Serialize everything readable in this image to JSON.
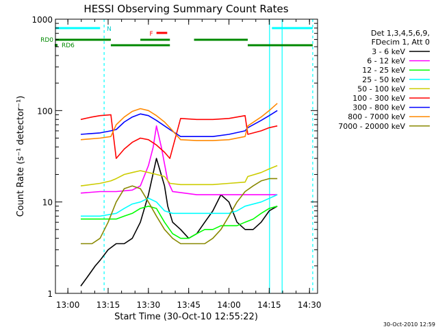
{
  "chart_data": {
    "type": "line",
    "title": "HESSI Observing Summary Count Rates",
    "xlabel": "Start Time (30-Oct-10 12:55:22)",
    "ylabel": "Count Rate (s⁻¹ detector⁻¹)",
    "yscale": "log",
    "ylim": [
      1,
      1000
    ],
    "xlim": [
      12.9228,
      14.55
    ],
    "x_units": "decimal hours UT",
    "x_ticks": [
      "13:00",
      "13:15",
      "13:30",
      "13:45",
      "14:00",
      "14:15",
      "14:30"
    ],
    "y_ticks": [
      "1",
      "10",
      "100",
      "1000"
    ],
    "timestamp": "30-Oct-2010 12:59",
    "legend": {
      "position": "right",
      "header": [
        "Det 1,3,4,5,6,9,",
        "FDecim 1, Att 0"
      ],
      "entries": [
        {
          "label": "3 - 6 keV",
          "color": "#000000"
        },
        {
          "label": "6 - 12 keV",
          "color": "#ff00ff"
        },
        {
          "label": "12 - 25 keV",
          "color": "#00ff00"
        },
        {
          "label": "25 - 50 keV",
          "color": "#00ffff"
        },
        {
          "label": "50 - 100 keV",
          "color": "#cccc00"
        },
        {
          "label": "100 - 300 keV",
          "color": "#ff0000"
        },
        {
          "label": "300 - 800 keV",
          "color": "#0000ff"
        },
        {
          "label": "800 - 7000 keV",
          "color": "#ff8800"
        },
        {
          "label": "7000 - 20000 keV",
          "color": "#888800"
        }
      ]
    },
    "flags": [
      {
        "label": "N",
        "color": "#00ffff",
        "segments": [
          [
            12.9228,
            13.2
          ],
          [
            14.2667,
            14.52
          ]
        ]
      },
      {
        "label": "F",
        "color": "#ff0000",
        "segments": [
          [
            13.55,
            13.6167
          ]
        ]
      },
      {
        "label": "RD0",
        "color": "#008800",
        "segments": [
          [
            12.9228,
            13.2667
          ],
          [
            13.45,
            13.6333
          ],
          [
            13.7833,
            14.1167
          ]
        ]
      },
      {
        "label": "RD6",
        "color": "#008800",
        "segments": [
          [
            13.2667,
            13.6333
          ],
          [
            14.1167,
            14.52
          ]
        ]
      }
    ],
    "markers": [
      {
        "x": 13.225,
        "color": "#00ffff",
        "style": "dashed"
      },
      {
        "x": 14.252,
        "color": "#00ffff",
        "style": "solid"
      },
      {
        "x": 14.33,
        "color": "#00ffff",
        "style": "solid"
      },
      {
        "x": 14.52,
        "color": "#00ffff",
        "style": "dashed"
      }
    ],
    "series": [
      {
        "name": "3 - 6 keV",
        "color": "#000000",
        "x": [
          13.08,
          13.12,
          13.17,
          13.2,
          13.25,
          13.3,
          13.35,
          13.4,
          13.45,
          13.5,
          13.55,
          13.6,
          13.62,
          13.65,
          13.7,
          13.75,
          13.8,
          13.85,
          13.9,
          13.95,
          14.0,
          14.05,
          14.1,
          14.15,
          14.2,
          14.25,
          14.3
        ],
        "y": [
          1.2,
          1.5,
          2.0,
          2.3,
          3.0,
          3.5,
          3.5,
          4.0,
          6,
          12,
          30,
          15,
          9,
          6,
          5,
          4,
          4.5,
          6,
          8,
          12,
          10,
          6,
          5,
          5,
          6,
          8,
          9
        ]
      },
      {
        "name": "6 - 12 keV",
        "color": "#ff00ff",
        "x": [
          13.08,
          13.2,
          13.3,
          13.4,
          13.45,
          13.5,
          13.53,
          13.55,
          13.58,
          13.62,
          13.65,
          13.8,
          13.95,
          14.05,
          14.1,
          14.2,
          14.3
        ],
        "y": [
          12.5,
          13,
          13,
          13.5,
          15,
          25,
          40,
          68,
          40,
          17,
          13,
          12,
          12,
          12,
          12,
          12,
          12
        ]
      },
      {
        "name": "12 - 25 keV",
        "color": "#00ff00",
        "x": [
          13.08,
          13.12,
          13.17,
          13.2,
          13.25,
          13.3,
          13.35,
          13.4,
          13.45,
          13.5,
          13.55,
          13.6,
          13.65,
          13.7,
          13.75,
          13.8,
          13.85,
          13.9,
          13.95,
          14.0,
          14.05,
          14.1,
          14.15,
          14.2,
          14.25,
          14.3
        ],
        "y": [
          6.5,
          6.5,
          6.5,
          6.5,
          6.5,
          6.5,
          7.0,
          7.5,
          8.5,
          9.0,
          8.5,
          6.0,
          4.5,
          4.0,
          4.0,
          4.5,
          5.0,
          5.0,
          5.5,
          5.5,
          5.5,
          6.0,
          6.5,
          7.5,
          8.5,
          9.0
        ]
      },
      {
        "name": "25 - 50 keV",
        "color": "#00ffff",
        "x": [
          13.08,
          13.2,
          13.3,
          13.35,
          13.4,
          13.45,
          13.5,
          13.55,
          13.6,
          13.65,
          13.7,
          13.8,
          13.9,
          14.0,
          14.05,
          14.1,
          14.2,
          14.3
        ],
        "y": [
          7.0,
          7.0,
          7.5,
          8.5,
          9.5,
          10,
          11,
          10,
          8,
          7.5,
          7.5,
          7.5,
          7.5,
          7.5,
          8,
          9,
          10,
          12
        ]
      },
      {
        "name": "50 - 100 keV",
        "color": "#cccc00",
        "x": [
          13.08,
          13.2,
          13.267,
          13.3,
          13.35,
          13.4,
          13.45,
          13.5,
          13.55,
          13.6,
          13.633,
          13.7,
          13.8,
          13.9,
          14.0,
          14.1,
          14.117,
          14.2,
          14.25,
          14.3
        ],
        "y": [
          15,
          16,
          17,
          18,
          20,
          21,
          22,
          21,
          20,
          19,
          16,
          15.5,
          15.5,
          15.5,
          16,
          16.5,
          19,
          21,
          23,
          25
        ]
      },
      {
        "name": "100 - 300 keV",
        "color": "#ff0000",
        "x": [
          13.08,
          13.15,
          13.2,
          13.267,
          13.3,
          13.35,
          13.4,
          13.45,
          13.5,
          13.55,
          13.6,
          13.633,
          13.7,
          13.8,
          13.9,
          14.0,
          14.1,
          14.117,
          14.2,
          14.25,
          14.3
        ],
        "y": [
          80,
          85,
          88,
          90,
          30,
          38,
          45,
          50,
          48,
          42,
          35,
          30,
          82,
          80,
          80,
          82,
          88,
          55,
          60,
          65,
          68
        ]
      },
      {
        "name": "300 - 800 keV",
        "color": "#0000ff",
        "x": [
          13.08,
          13.2,
          13.267,
          13.3,
          13.35,
          13.4,
          13.45,
          13.5,
          13.55,
          13.6,
          13.633,
          13.7,
          13.8,
          13.9,
          14.0,
          14.1,
          14.117,
          14.2,
          14.25,
          14.3
        ],
        "y": [
          55,
          57,
          60,
          62,
          75,
          85,
          92,
          88,
          78,
          68,
          62,
          52,
          52,
          52,
          55,
          60,
          65,
          78,
          88,
          100
        ]
      },
      {
        "name": "800 - 7000 keV",
        "color": "#ff8800",
        "x": [
          13.08,
          13.2,
          13.267,
          13.3,
          13.35,
          13.4,
          13.45,
          13.5,
          13.55,
          13.6,
          13.633,
          13.7,
          13.8,
          13.9,
          14.0,
          14.1,
          14.117,
          14.2,
          14.25,
          14.3
        ],
        "y": [
          48,
          50,
          52,
          70,
          85,
          98,
          105,
          100,
          88,
          75,
          65,
          48,
          47,
          47,
          48,
          52,
          68,
          85,
          100,
          120
        ]
      },
      {
        "name": "7000 - 20000 keV",
        "color": "#888800",
        "x": [
          13.08,
          13.15,
          13.2,
          13.25,
          13.3,
          13.35,
          13.4,
          13.45,
          13.5,
          13.55,
          13.6,
          13.65,
          13.7,
          13.75,
          13.8,
          13.85,
          13.9,
          13.95,
          14.0,
          14.05,
          14.1,
          14.15,
          14.2,
          14.25,
          14.3
        ],
        "y": [
          3.5,
          3.5,
          4,
          6,
          10,
          14,
          15,
          14,
          10,
          7,
          5,
          4,
          3.5,
          3.5,
          3.5,
          3.5,
          4,
          5,
          7,
          10,
          13,
          15,
          17,
          18,
          18
        ]
      }
    ]
  }
}
